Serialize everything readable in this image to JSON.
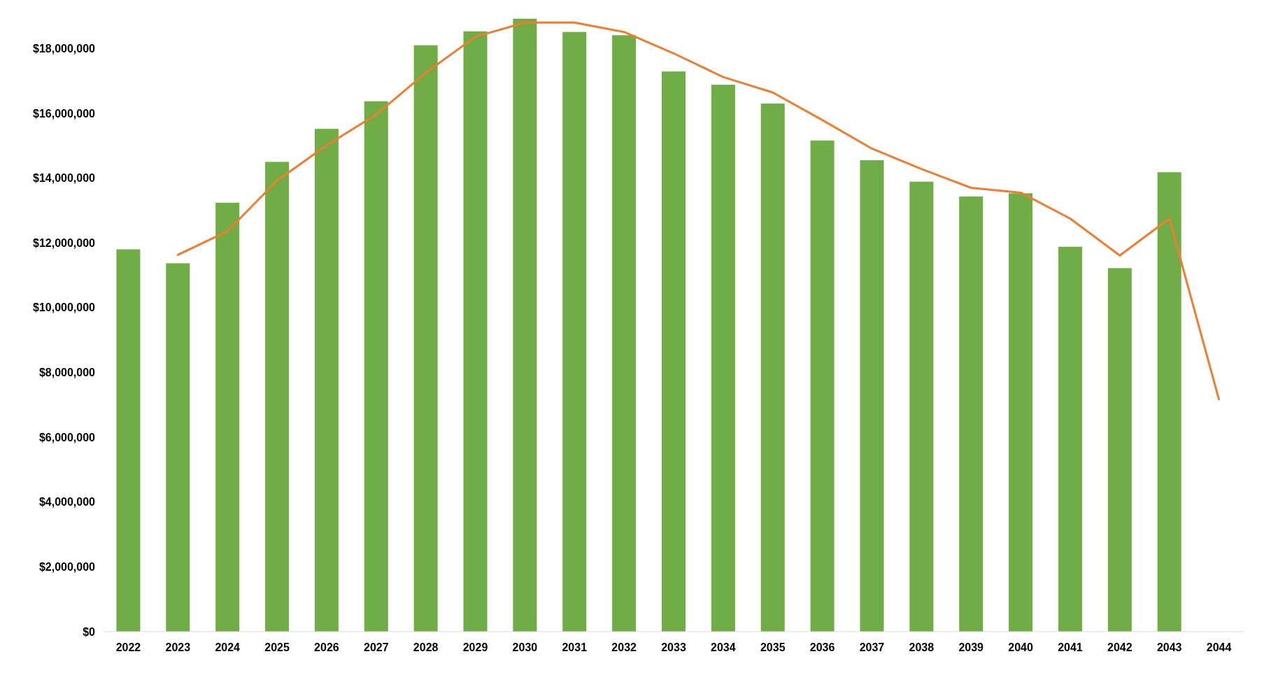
{
  "chart_data": {
    "type": "bar",
    "categories": [
      "2022",
      "2023",
      "2024",
      "2025",
      "2026",
      "2027",
      "2028",
      "2029",
      "2030",
      "2031",
      "2032",
      "2033",
      "2034",
      "2035",
      "2036",
      "2037",
      "2038",
      "2039",
      "2040",
      "2041",
      "2042",
      "2043",
      "2044"
    ],
    "series": [
      {
        "color": "#70ad47",
        "values": [
          11800000,
          11370000,
          13240000,
          14500000,
          15520000,
          16370000,
          18100000,
          18530000,
          18920000,
          18510000,
          18410000,
          17290000,
          16880000,
          16300000,
          15160000,
          14550000,
          13890000,
          13430000,
          13530000,
          11880000,
          11220000,
          14180000,
          null
        ]
      },
      {
        "type": "line",
        "color": "#ed7d31",
        "values": [
          null,
          11630000,
          12360000,
          13920000,
          15010000,
          15960000,
          17250000,
          18360000,
          18800000,
          18800000,
          18510000,
          17850000,
          17120000,
          16640000,
          15790000,
          14910000,
          14280000,
          13700000,
          13550000,
          12750000,
          11610000,
          12750000,
          7170000
        ]
      }
    ],
    "ylim": [
      0,
      19000000
    ],
    "yticks": [
      {
        "value": 0,
        "label": "$0"
      },
      {
        "value": 2000000,
        "label": "$2,000,000"
      },
      {
        "value": 4000000,
        "label": "$4,000,000"
      },
      {
        "value": 6000000,
        "label": "$6,000,000"
      },
      {
        "value": 8000000,
        "label": "$8,000,000"
      },
      {
        "value": 10000000,
        "label": "$10,000,000"
      },
      {
        "value": 12000000,
        "label": "$12,000,000"
      },
      {
        "value": 14000000,
        "label": "$14,000,000"
      },
      {
        "value": 16000000,
        "label": "$16,000,000"
      },
      {
        "value": 18000000,
        "label": "$18,000,000"
      }
    ]
  }
}
